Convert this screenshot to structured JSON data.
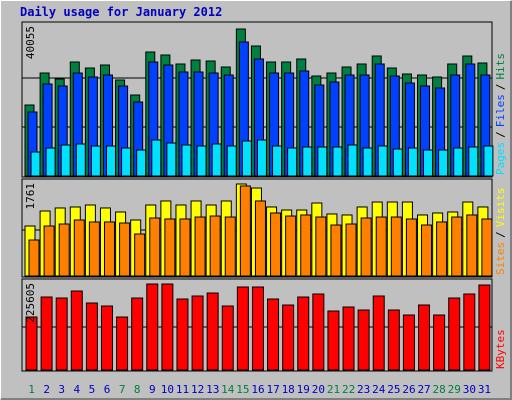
{
  "title": "Daily usage for January 2012",
  "chart_data": [
    {
      "type": "bar",
      "ylim": [
        0,
        40055
      ],
      "gridlines": [
        13352,
        26703
      ],
      "legend_separator": "/",
      "series": [
        {
          "name": "Hits",
          "color": "#008040",
          "values": [
            19346,
            28066,
            26431,
            31063,
            29428,
            30246,
            26158,
            22071,
            33788,
            32970,
            30518,
            31608,
            31335,
            29700,
            40055,
            35423,
            31063,
            31063,
            31880,
            27248,
            28066,
            29700,
            30518,
            32698,
            29428,
            27793,
            27520,
            26975,
            30518,
            32698,
            30790
          ]
        },
        {
          "name": "Files",
          "color": "#0040FF",
          "values": [
            17439,
            25069,
            24524,
            28066,
            26976,
            27521,
            24524,
            20164,
            31063,
            30246,
            28338,
            28338,
            28066,
            27521,
            36513,
            31880,
            28066,
            28066,
            28611,
            24796,
            25614,
            27521,
            27521,
            30518,
            27248,
            25341,
            24524,
            23979,
            27521,
            30518,
            27521
          ]
        },
        {
          "name": "Pages",
          "color": "#00E0FF",
          "values": [
            6540,
            7630,
            8447,
            8720,
            8175,
            8175,
            7630,
            7085,
            9810,
            8992,
            8447,
            8175,
            8720,
            8175,
            9537,
            9810,
            8175,
            7630,
            7902,
            7902,
            7902,
            8447,
            7630,
            8175,
            7357,
            7630,
            7085,
            7085,
            7630,
            7902,
            8175
          ]
        }
      ]
    },
    {
      "type": "bar",
      "ylim": [
        0,
        1761
      ],
      "gridlines": [
        880
      ],
      "legend_separator": "/",
      "series": [
        {
          "name": "Visits",
          "color": "#FFFF00",
          "values": [
            957,
            1244,
            1302,
            1321,
            1359,
            1302,
            1225,
            1072,
            1359,
            1436,
            1359,
            1436,
            1359,
            1436,
            1761,
            1684,
            1321,
            1263,
            1263,
            1397,
            1187,
            1168,
            1321,
            1416,
            1416,
            1416,
            1168,
            1206,
            1225,
            1416,
            1321
          ]
        },
        {
          "name": "Sites",
          "color": "#FF8000",
          "values": [
            689,
            957,
            995,
            1072,
            1034,
            1034,
            1014,
            804,
            1110,
            1091,
            1091,
            1129,
            1148,
            1129,
            1723,
            1436,
            1206,
            1148,
            1168,
            1129,
            976,
            995,
            1110,
            1129,
            1129,
            1091,
            976,
            1034,
            1129,
            1168,
            1091
          ]
        }
      ]
    },
    {
      "type": "bar",
      "ylim": [
        0,
        225605
      ],
      "gridlines": [
        112802
      ],
      "categories": [
        "1",
        "2",
        "3",
        "4",
        "5",
        "6",
        "7",
        "8",
        "9",
        "10",
        "11",
        "12",
        "13",
        "14",
        "15",
        "16",
        "17",
        "18",
        "19",
        "20",
        "21",
        "22",
        "23",
        "24",
        "25",
        "26",
        "27",
        "28",
        "29",
        "30",
        "31"
      ],
      "category_colors": [
        "#008040",
        "#0000C0",
        "#0000C0",
        "#0000C0",
        "#0000C0",
        "#0000C0",
        "#008040",
        "#008040",
        "#0000C0",
        "#0000C0",
        "#0000C0",
        "#0000C0",
        "#0000C0",
        "#008040",
        "#008040",
        "#0000C0",
        "#0000C0",
        "#0000C0",
        "#0000C0",
        "#0000C0",
        "#008040",
        "#008040",
        "#0000C0",
        "#0000C0",
        "#0000C0",
        "#0000C0",
        "#0000C0",
        "#008040",
        "#008040",
        "#0000C0",
        "#0000C0"
      ],
      "series": [
        {
          "name": "KBytes",
          "color": "#FF0000",
          "values": [
            139019,
            191479,
            188856,
            207217,
            175741,
            167872,
            139019,
            188856,
            225605,
            225605,
            186233,
            194102,
            201971,
            167872,
            217736,
            217736,
            186233,
            170495,
            191479,
            199348,
            154757,
            165249,
            157380,
            194102,
            157380,
            144265,
            170495,
            144265,
            188856,
            199348,
            222958
          ]
        }
      ]
    }
  ]
}
